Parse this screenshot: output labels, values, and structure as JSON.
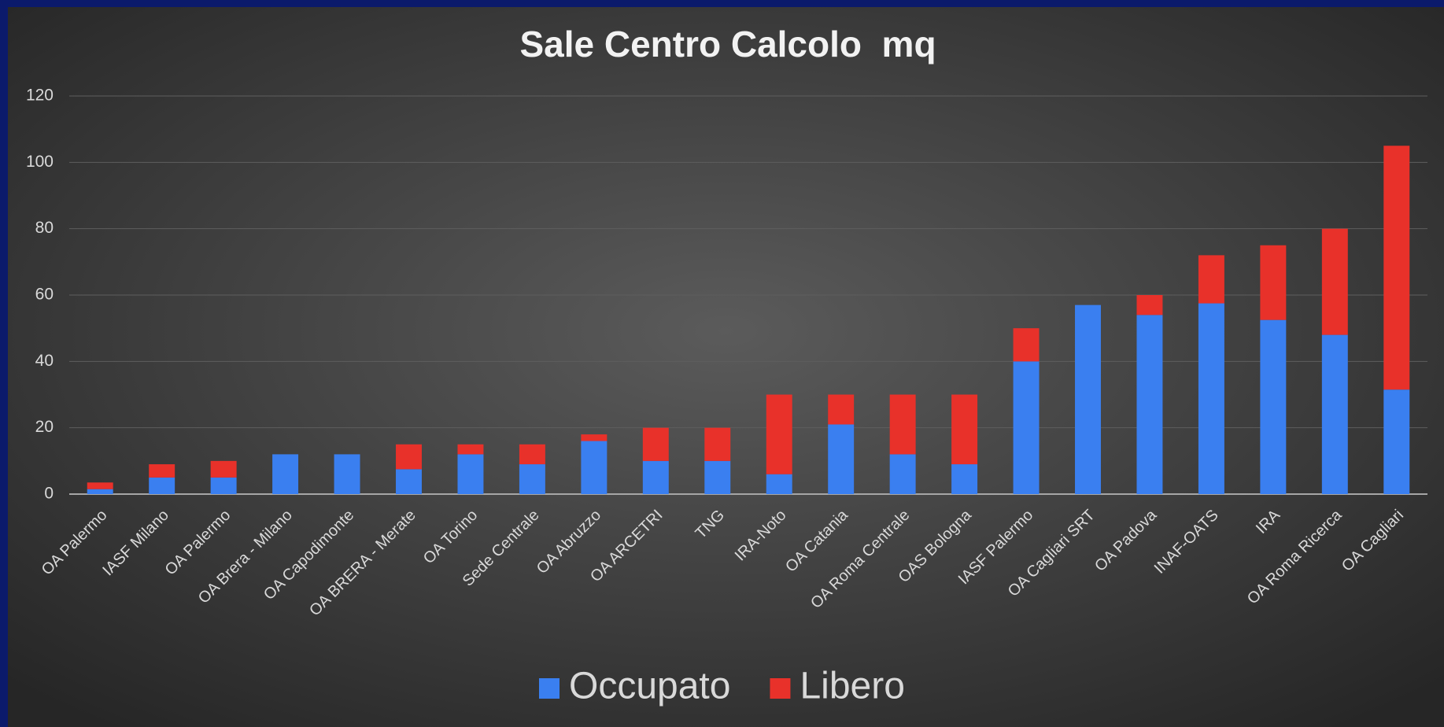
{
  "chart_data": {
    "type": "stacked_bar",
    "title": "Sale Centro Calcolo  mq",
    "categories": [
      "OA Palermo",
      "IASF Milano",
      "OA Palermo",
      "OA Brera - Milano",
      "OA Capodimonte",
      "OA BRERA - Merate",
      "OA Torino",
      "Sede Centrale",
      "OA Abruzzo",
      "OA ARCETRI",
      "TNG",
      "IRA-Noto",
      "OA Catania",
      "OA Roma Centrale",
      "OAS Bologna",
      "IASF Palermo",
      "OA Cagliari SRT",
      "OA Padova",
      "INAF-OATS",
      "IRA",
      "OA Roma Ricerca",
      "OA Cagliari"
    ],
    "series": [
      {
        "name": "Occupato",
        "color": "#3a7ff0",
        "values": [
          1.5,
          5,
          5,
          12,
          12,
          7.5,
          12,
          9,
          16,
          10,
          10,
          6,
          21,
          12,
          9,
          40,
          57,
          54,
          57.5,
          52.5,
          48,
          31.5
        ]
      },
      {
        "name": "Libero",
        "color": "#e8312a",
        "values": [
          2,
          4,
          5,
          0,
          0,
          7.5,
          3,
          6,
          2,
          10,
          10,
          24,
          9,
          18,
          21,
          10,
          0,
          6,
          14.5,
          22.5,
          32,
          73.5
        ]
      }
    ],
    "ylim": [
      0,
      120
    ],
    "yticks": [
      0,
      20,
      40,
      60,
      80,
      100,
      120
    ],
    "grid": true,
    "legend": "bottom"
  }
}
